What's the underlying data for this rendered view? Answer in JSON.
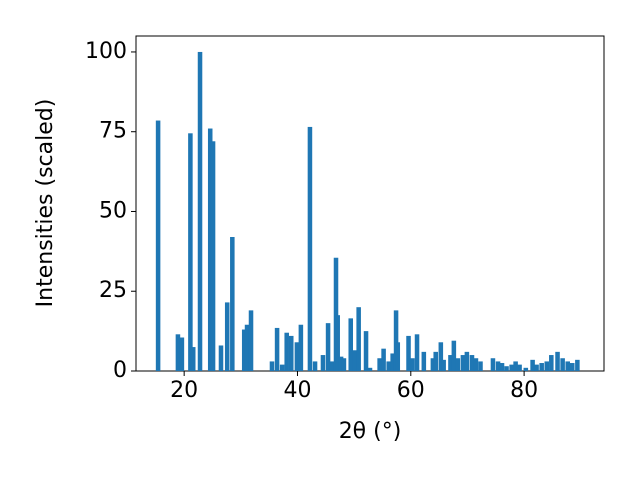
{
  "chart_data": {
    "type": "bar",
    "xlabel": "2θ (°)",
    "ylabel": "Intensities (scaled)",
    "x": [
      15.4,
      18.9,
      19.6,
      21.1,
      21.6,
      22.8,
      24.6,
      25.1,
      26.5,
      27.6,
      28.5,
      30.6,
      31.1,
      31.8,
      35.5,
      36.4,
      37.3,
      38.1,
      38.9,
      39.9,
      40.6,
      42.2,
      43.1,
      44.5,
      45.4,
      46.1,
      46.8,
      47.1,
      47.7,
      48.2,
      49.4,
      50.1,
      50.8,
      52.1,
      52.8,
      54.5,
      55.2,
      56.1,
      56.8,
      57.4,
      57.7,
      59.6,
      60.3,
      61.1,
      62.3,
      63.9,
      64.4,
      65.3,
      65.8,
      67.0,
      67.6,
      68.3,
      69.2,
      69.9,
      70.8,
      71.5,
      72.3,
      74.5,
      75.4,
      76.1,
      76.9,
      77.8,
      78.5,
      79.2,
      80.3,
      81.5,
      82.2,
      83.1,
      84.0,
      84.8,
      85.9,
      86.8,
      87.7,
      88.5,
      89.4
    ],
    "values": [
      78.5,
      11.5,
      10.5,
      74.5,
      7.5,
      100,
      76,
      72,
      8,
      21.5,
      42,
      13,
      14.5,
      19,
      3,
      13.5,
      2,
      12,
      11,
      9,
      14.5,
      76.5,
      3,
      5,
      15,
      3,
      35.5,
      17.5,
      4.5,
      4,
      16.5,
      6.5,
      20,
      12.5,
      1,
      4,
      7,
      3,
      5.5,
      19,
      9,
      11,
      4,
      11.5,
      6,
      4,
      6,
      9,
      3.5,
      5,
      9.5,
      4,
      5,
      6,
      5,
      4,
      3,
      4,
      3,
      2.5,
      1.5,
      2,
      3,
      2,
      1,
      3.5,
      2,
      2.5,
      3,
      5,
      6,
      4,
      3,
      2.5,
      3.5
    ],
    "color": "#1f77b4",
    "xlim": [
      11.5,
      94.1
    ],
    "ylim": [
      0,
      105
    ],
    "xticks": [
      20,
      40,
      60,
      80
    ],
    "yticks": [
      0,
      25,
      50,
      75,
      100
    ]
  }
}
